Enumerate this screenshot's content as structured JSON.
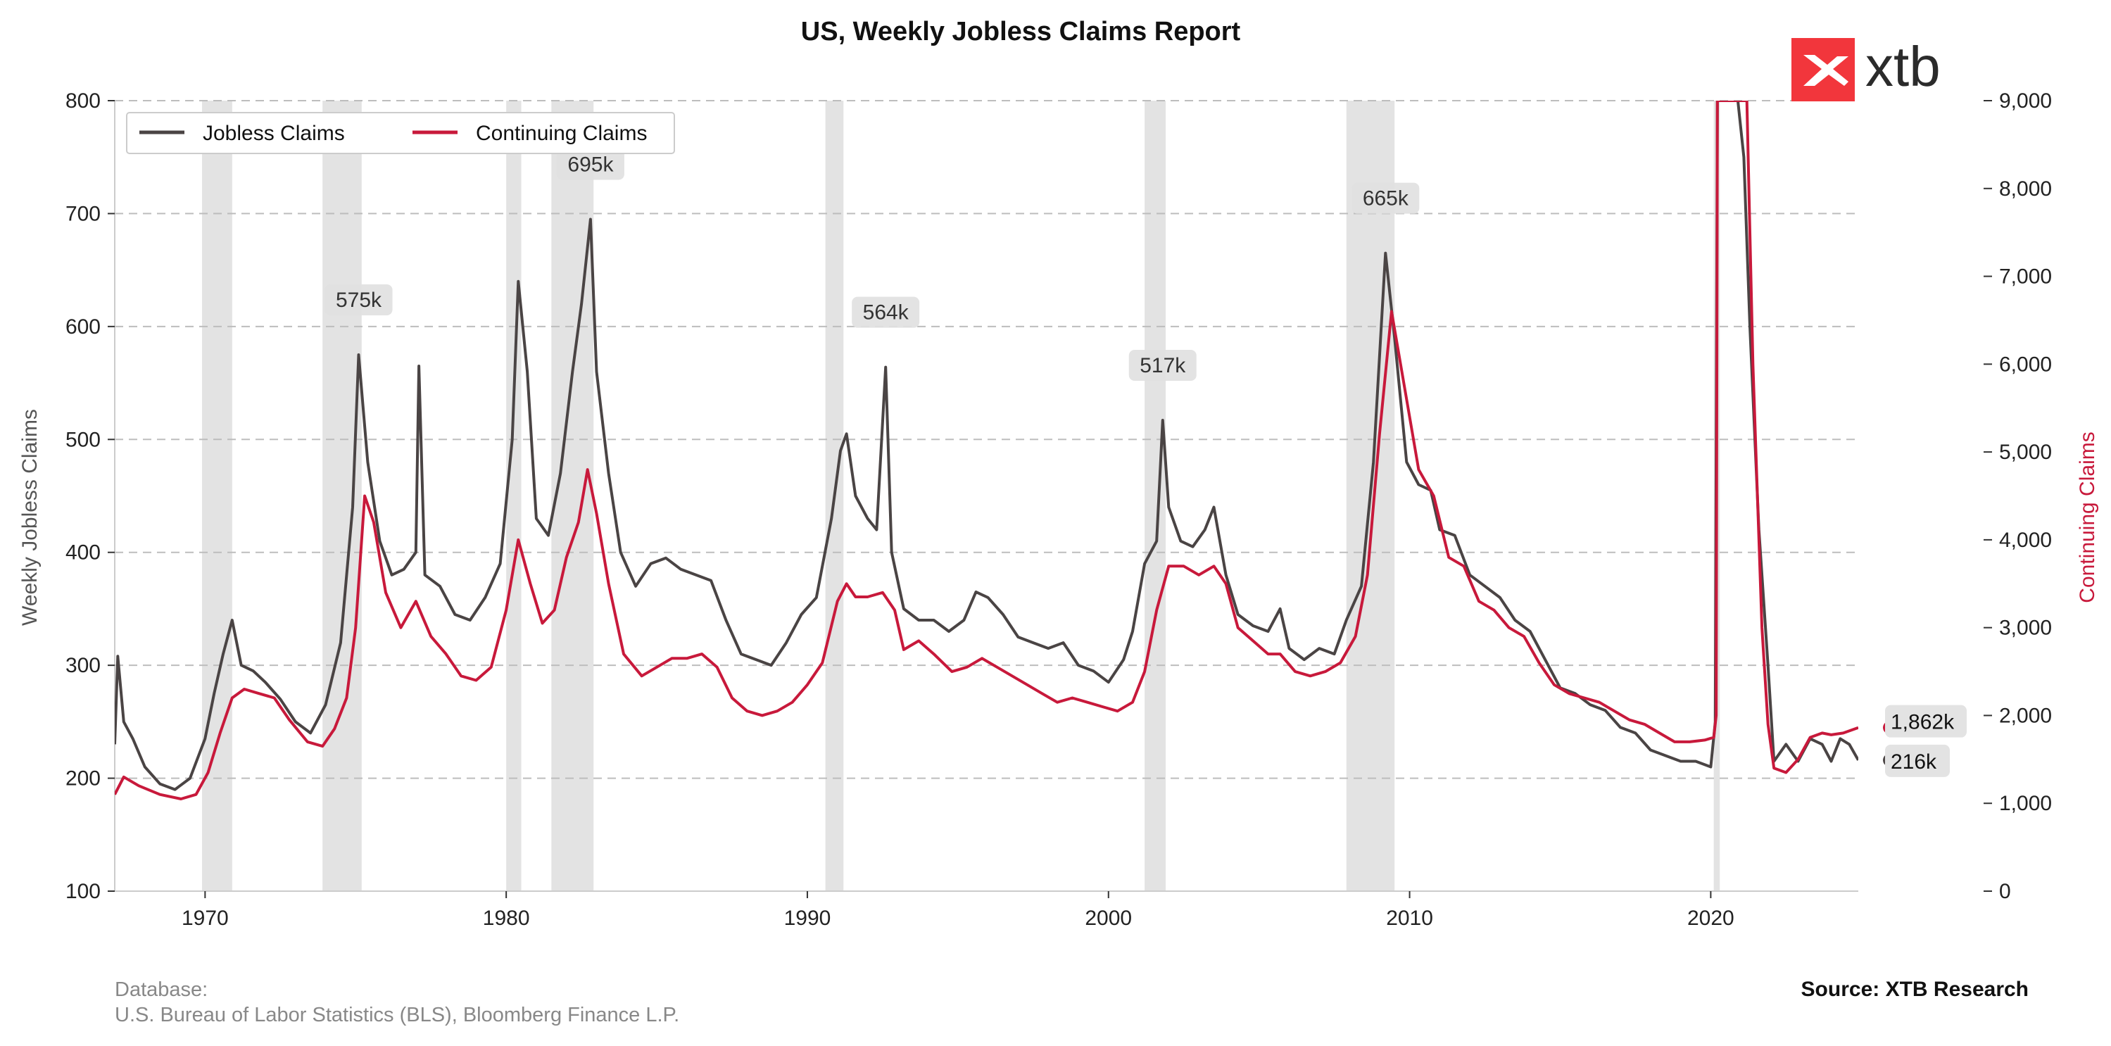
{
  "chart_data": {
    "type": "line",
    "title": "US, Weekly Jobless Claims Report",
    "ylabel_left": "Weekly Jobless Claims",
    "ylabel_right": "Continuing Claims",
    "ylim_left": [
      100,
      800
    ],
    "ylim_right": [
      0,
      9000
    ],
    "xlim": [
      1967,
      2024.9
    ],
    "grid": "horizontal dashed",
    "legend_position": "top-left",
    "x_ticks": [
      "1970",
      "1980",
      "1990",
      "2000",
      "2010",
      "2020"
    ],
    "y_left_ticks": [
      "100",
      "200",
      "300",
      "400",
      "500",
      "600",
      "700",
      "800"
    ],
    "y_right_ticks": [
      "0",
      "1,000",
      "2,000",
      "3,000",
      "4,000",
      "5,000",
      "6,000",
      "7,000",
      "8,000",
      "9,000"
    ],
    "recessions": [
      [
        1969.9,
        1970.9
      ],
      [
        1973.9,
        1975.2
      ],
      [
        1980.0,
        1980.5
      ],
      [
        1981.5,
        1982.9
      ],
      [
        1990.6,
        1991.2
      ],
      [
        2001.2,
        2001.9
      ],
      [
        2007.9,
        2009.5
      ],
      [
        2020.1,
        2020.3
      ]
    ],
    "series": [
      {
        "name": "Jobless Claims",
        "axis": "left",
        "color": "#4a4444",
        "points": [
          [
            1967.0,
            230
          ],
          [
            1967.1,
            308
          ],
          [
            1967.3,
            250
          ],
          [
            1967.6,
            235
          ],
          [
            1968.0,
            210
          ],
          [
            1968.5,
            195
          ],
          [
            1969.0,
            190
          ],
          [
            1969.5,
            200
          ],
          [
            1970.0,
            235
          ],
          [
            1970.3,
            275
          ],
          [
            1970.6,
            310
          ],
          [
            1970.9,
            340
          ],
          [
            1971.2,
            300
          ],
          [
            1971.6,
            295
          ],
          [
            1972.0,
            285
          ],
          [
            1972.5,
            270
          ],
          [
            1973.0,
            250
          ],
          [
            1973.5,
            240
          ],
          [
            1974.0,
            265
          ],
          [
            1974.5,
            320
          ],
          [
            1974.9,
            440
          ],
          [
            1975.1,
            575
          ],
          [
            1975.4,
            480
          ],
          [
            1975.8,
            410
          ],
          [
            1976.2,
            380
          ],
          [
            1976.6,
            385
          ],
          [
            1977.0,
            400
          ],
          [
            1977.1,
            565
          ],
          [
            1977.3,
            380
          ],
          [
            1977.8,
            370
          ],
          [
            1978.3,
            345
          ],
          [
            1978.8,
            340
          ],
          [
            1979.3,
            360
          ],
          [
            1979.8,
            390
          ],
          [
            1980.2,
            500
          ],
          [
            1980.4,
            640
          ],
          [
            1980.7,
            560
          ],
          [
            1981.0,
            430
          ],
          [
            1981.4,
            415
          ],
          [
            1981.8,
            470
          ],
          [
            1982.2,
            560
          ],
          [
            1982.5,
            620
          ],
          [
            1982.8,
            695
          ],
          [
            1983.0,
            560
          ],
          [
            1983.4,
            470
          ],
          [
            1983.8,
            400
          ],
          [
            1984.3,
            370
          ],
          [
            1984.8,
            390
          ],
          [
            1985.3,
            395
          ],
          [
            1985.8,
            385
          ],
          [
            1986.3,
            380
          ],
          [
            1986.8,
            375
          ],
          [
            1987.3,
            340
          ],
          [
            1987.8,
            310
          ],
          [
            1988.3,
            305
          ],
          [
            1988.8,
            300
          ],
          [
            1989.3,
            320
          ],
          [
            1989.8,
            345
          ],
          [
            1990.3,
            360
          ],
          [
            1990.8,
            430
          ],
          [
            1991.1,
            490
          ],
          [
            1991.3,
            505
          ],
          [
            1991.6,
            450
          ],
          [
            1992.0,
            430
          ],
          [
            1992.3,
            420
          ],
          [
            1992.6,
            564
          ],
          [
            1992.8,
            400
          ],
          [
            1993.2,
            350
          ],
          [
            1993.7,
            340
          ],
          [
            1994.2,
            340
          ],
          [
            1994.7,
            330
          ],
          [
            1995.2,
            340
          ],
          [
            1995.6,
            365
          ],
          [
            1996.0,
            360
          ],
          [
            1996.5,
            345
          ],
          [
            1997.0,
            325
          ],
          [
            1997.5,
            320
          ],
          [
            1998.0,
            315
          ],
          [
            1998.5,
            320
          ],
          [
            1999.0,
            300
          ],
          [
            1999.5,
            295
          ],
          [
            2000.0,
            285
          ],
          [
            2000.5,
            305
          ],
          [
            2000.8,
            330
          ],
          [
            2001.2,
            390
          ],
          [
            2001.6,
            410
          ],
          [
            2001.8,
            517
          ],
          [
            2002.0,
            440
          ],
          [
            2002.4,
            410
          ],
          [
            2002.8,
            405
          ],
          [
            2003.2,
            420
          ],
          [
            2003.5,
            440
          ],
          [
            2003.9,
            380
          ],
          [
            2004.3,
            345
          ],
          [
            2004.8,
            335
          ],
          [
            2005.3,
            330
          ],
          [
            2005.7,
            350
          ],
          [
            2006.0,
            315
          ],
          [
            2006.5,
            305
          ],
          [
            2007.0,
            315
          ],
          [
            2007.5,
            310
          ],
          [
            2007.9,
            340
          ],
          [
            2008.4,
            370
          ],
          [
            2008.8,
            480
          ],
          [
            2009.2,
            665
          ],
          [
            2009.5,
            590
          ],
          [
            2009.9,
            480
          ],
          [
            2010.3,
            460
          ],
          [
            2010.7,
            455
          ],
          [
            2011.0,
            420
          ],
          [
            2011.5,
            415
          ],
          [
            2012.0,
            380
          ],
          [
            2012.5,
            370
          ],
          [
            2013.0,
            360
          ],
          [
            2013.5,
            340
          ],
          [
            2014.0,
            330
          ],
          [
            2014.5,
            305
          ],
          [
            2015.0,
            280
          ],
          [
            2015.5,
            275
          ],
          [
            2016.0,
            265
          ],
          [
            2016.5,
            260
          ],
          [
            2017.0,
            245
          ],
          [
            2017.5,
            240
          ],
          [
            2018.0,
            225
          ],
          [
            2018.5,
            220
          ],
          [
            2019.0,
            215
          ],
          [
            2019.5,
            215
          ],
          [
            2020.0,
            210
          ],
          [
            2020.15,
            250
          ],
          [
            2020.22,
            800
          ],
          [
            2020.9,
            800
          ],
          [
            2021.1,
            750
          ],
          [
            2021.3,
            600
          ],
          [
            2021.6,
            420
          ],
          [
            2021.9,
            300
          ],
          [
            2022.1,
            215
          ],
          [
            2022.5,
            230
          ],
          [
            2022.9,
            215
          ],
          [
            2023.3,
            235
          ],
          [
            2023.7,
            230
          ],
          [
            2024.0,
            215
          ],
          [
            2024.3,
            235
          ],
          [
            2024.6,
            230
          ],
          [
            2024.9,
            216
          ]
        ]
      },
      {
        "name": "Continuing Claims",
        "axis": "right",
        "color": "#c8193b",
        "points": [
          [
            1967.0,
            1100
          ],
          [
            1967.3,
            1300
          ],
          [
            1967.8,
            1200
          ],
          [
            1968.5,
            1100
          ],
          [
            1969.2,
            1050
          ],
          [
            1969.7,
            1100
          ],
          [
            1970.1,
            1350
          ],
          [
            1970.5,
            1800
          ],
          [
            1970.9,
            2200
          ],
          [
            1971.3,
            2300
          ],
          [
            1971.8,
            2250
          ],
          [
            1972.3,
            2200
          ],
          [
            1972.8,
            1950
          ],
          [
            1973.4,
            1700
          ],
          [
            1973.9,
            1650
          ],
          [
            1974.3,
            1850
          ],
          [
            1974.7,
            2200
          ],
          [
            1975.0,
            3000
          ],
          [
            1975.3,
            4500
          ],
          [
            1975.6,
            4200
          ],
          [
            1976.0,
            3400
          ],
          [
            1976.5,
            3000
          ],
          [
            1977.0,
            3300
          ],
          [
            1977.5,
            2900
          ],
          [
            1978.0,
            2700
          ],
          [
            1978.5,
            2450
          ],
          [
            1979.0,
            2400
          ],
          [
            1979.5,
            2550
          ],
          [
            1980.0,
            3200
          ],
          [
            1980.4,
            4000
          ],
          [
            1980.8,
            3500
          ],
          [
            1981.2,
            3050
          ],
          [
            1981.6,
            3200
          ],
          [
            1982.0,
            3800
          ],
          [
            1982.4,
            4200
          ],
          [
            1982.7,
            4800
          ],
          [
            1983.0,
            4300
          ],
          [
            1983.4,
            3500
          ],
          [
            1983.9,
            2700
          ],
          [
            1984.5,
            2450
          ],
          [
            1985.0,
            2550
          ],
          [
            1985.5,
            2650
          ],
          [
            1986.0,
            2650
          ],
          [
            1986.5,
            2700
          ],
          [
            1987.0,
            2550
          ],
          [
            1987.5,
            2200
          ],
          [
            1988.0,
            2050
          ],
          [
            1988.5,
            2000
          ],
          [
            1989.0,
            2050
          ],
          [
            1989.5,
            2150
          ],
          [
            1990.0,
            2350
          ],
          [
            1990.5,
            2600
          ],
          [
            1991.0,
            3300
          ],
          [
            1991.3,
            3500
          ],
          [
            1991.6,
            3350
          ],
          [
            1992.0,
            3350
          ],
          [
            1992.5,
            3400
          ],
          [
            1992.9,
            3200
          ],
          [
            1993.2,
            2750
          ],
          [
            1993.7,
            2850
          ],
          [
            1994.2,
            2700
          ],
          [
            1994.8,
            2500
          ],
          [
            1995.3,
            2550
          ],
          [
            1995.8,
            2650
          ],
          [
            1996.3,
            2550
          ],
          [
            1996.8,
            2450
          ],
          [
            1997.3,
            2350
          ],
          [
            1997.8,
            2250
          ],
          [
            1998.3,
            2150
          ],
          [
            1998.8,
            2200
          ],
          [
            1999.3,
            2150
          ],
          [
            1999.8,
            2100
          ],
          [
            2000.3,
            2050
          ],
          [
            2000.8,
            2150
          ],
          [
            2001.2,
            2500
          ],
          [
            2001.6,
            3200
          ],
          [
            2002.0,
            3700
          ],
          [
            2002.5,
            3700
          ],
          [
            2003.0,
            3600
          ],
          [
            2003.5,
            3700
          ],
          [
            2003.9,
            3500
          ],
          [
            2004.3,
            3000
          ],
          [
            2004.8,
            2850
          ],
          [
            2005.3,
            2700
          ],
          [
            2005.7,
            2700
          ],
          [
            2006.2,
            2500
          ],
          [
            2006.7,
            2450
          ],
          [
            2007.2,
            2500
          ],
          [
            2007.7,
            2600
          ],
          [
            2008.2,
            2900
          ],
          [
            2008.6,
            3600
          ],
          [
            2009.0,
            5200
          ],
          [
            2009.4,
            6600
          ],
          [
            2009.8,
            5800
          ],
          [
            2010.3,
            4800
          ],
          [
            2010.8,
            4500
          ],
          [
            2011.3,
            3800
          ],
          [
            2011.8,
            3700
          ],
          [
            2012.3,
            3300
          ],
          [
            2012.8,
            3200
          ],
          [
            2013.3,
            3000
          ],
          [
            2013.8,
            2900
          ],
          [
            2014.3,
            2600
          ],
          [
            2014.8,
            2350
          ],
          [
            2015.3,
            2250
          ],
          [
            2015.8,
            2200
          ],
          [
            2016.3,
            2150
          ],
          [
            2016.8,
            2050
          ],
          [
            2017.3,
            1950
          ],
          [
            2017.8,
            1900
          ],
          [
            2018.3,
            1800
          ],
          [
            2018.8,
            1700
          ],
          [
            2019.3,
            1700
          ],
          [
            2019.8,
            1720
          ],
          [
            2020.1,
            1750
          ],
          [
            2020.18,
            2000
          ],
          [
            2020.22,
            9000
          ],
          [
            2021.2,
            9000
          ],
          [
            2021.4,
            6000
          ],
          [
            2021.7,
            3000
          ],
          [
            2021.9,
            1900
          ],
          [
            2022.1,
            1400
          ],
          [
            2022.5,
            1350
          ],
          [
            2022.9,
            1500
          ],
          [
            2023.3,
            1750
          ],
          [
            2023.7,
            1800
          ],
          [
            2024.0,
            1780
          ],
          [
            2024.4,
            1800
          ],
          [
            2024.9,
            1862
          ]
        ]
      }
    ],
    "annotations": [
      {
        "label": "575k",
        "x": 1975.1,
        "y": 575
      },
      {
        "label": "695k",
        "x": 1982.8,
        "y": 695
      },
      {
        "label": "564k",
        "x": 1992.6,
        "y": 564
      },
      {
        "label": "517k",
        "x": 2001.8,
        "y": 517
      },
      {
        "label": "665k",
        "x": 2009.2,
        "y": 665
      }
    ],
    "end_labels": [
      {
        "label": "1,862k",
        "series": "Continuing Claims",
        "value": 1862
      },
      {
        "label": "216k",
        "series": "Jobless Claims",
        "value": 216
      }
    ]
  },
  "footer": {
    "database_label": "Database:",
    "database_sources": "U.S. Bureau of Labor Statistics (BLS), Bloomberg Finance L.P.",
    "source": "Source: XTB Research"
  },
  "brand": {
    "name": "xtb",
    "color": "#f2363c"
  }
}
